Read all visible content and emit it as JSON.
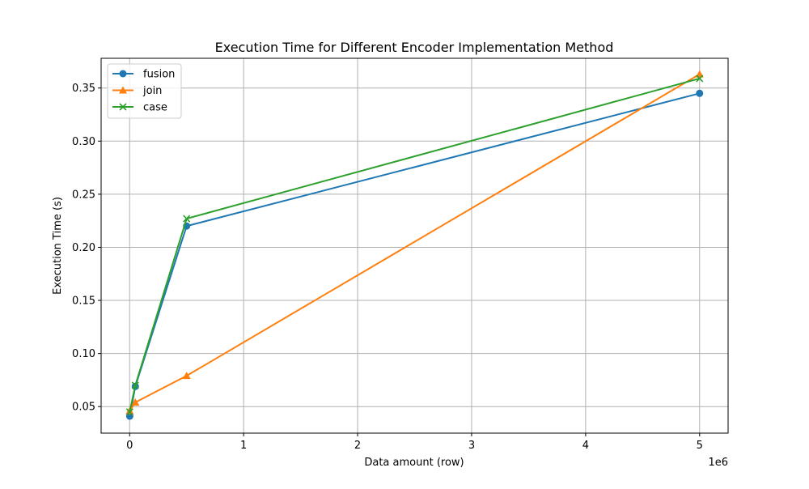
{
  "chart_data": {
    "type": "line",
    "title": "Execution Time for Different Encoder Implementation Method",
    "xlabel": "Data amount (row)",
    "ylabel": "Execution Time (s)",
    "x_offset_label": "1e6",
    "xlim": [
      -250000,
      5250000
    ],
    "ylim": [
      0.025,
      0.378
    ],
    "xticks": [
      0,
      1000000,
      2000000,
      3000000,
      4000000,
      5000000
    ],
    "xtick_labels": [
      "0",
      "1",
      "2",
      "3",
      "4",
      "5"
    ],
    "yticks": [
      0.05,
      0.1,
      0.15,
      0.2,
      0.25,
      0.3,
      0.35
    ],
    "ytick_labels": [
      "0.05",
      "0.10",
      "0.15",
      "0.20",
      "0.25",
      "0.30",
      "0.35"
    ],
    "grid": true,
    "legend_position": "upper left",
    "x": [
      1000,
      50000,
      500000,
      5000000
    ],
    "series": [
      {
        "name": "fusion",
        "marker": "circle",
        "color": "#1f77b4",
        "values": [
          0.041,
          0.069,
          0.22,
          0.345
        ]
      },
      {
        "name": "join",
        "marker": "triangle",
        "color": "#ff7f0e",
        "values": [
          0.046,
          0.054,
          0.079,
          0.363
        ]
      },
      {
        "name": "case",
        "marker": "x",
        "color": "#2ca02c",
        "values": [
          0.045,
          0.07,
          0.227,
          0.359
        ]
      }
    ]
  }
}
